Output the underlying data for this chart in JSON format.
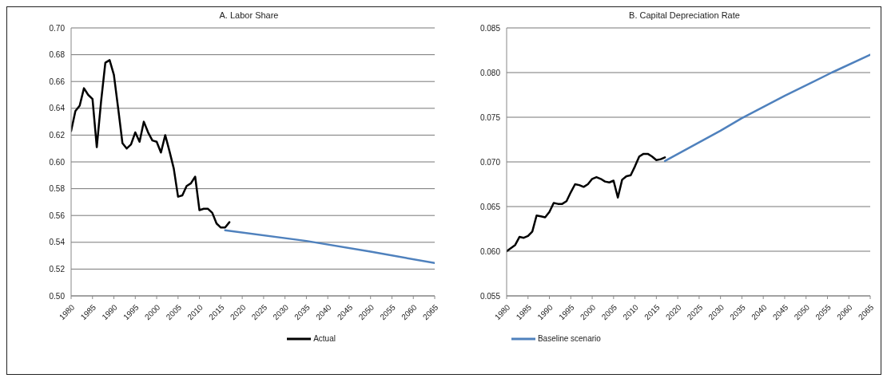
{
  "chart_data": [
    {
      "type": "line",
      "title": "A. Labor Share",
      "xlim": [
        1980,
        2065
      ],
      "xticks": [
        1980,
        1985,
        1990,
        1995,
        2000,
        2005,
        2010,
        2015,
        2020,
        2025,
        2030,
        2035,
        2040,
        2045,
        2050,
        2055,
        2060,
        2065
      ],
      "ylim": [
        0.5,
        0.7
      ],
      "yticks": [
        {
          "value": 0.5,
          "label": "0.50"
        },
        {
          "value": 0.52,
          "label": "0.52"
        },
        {
          "value": 0.54,
          "label": "0.54"
        },
        {
          "value": 0.56,
          "label": "0.56"
        },
        {
          "value": 0.58,
          "label": "0.58"
        },
        {
          "value": 0.6,
          "label": "0.60"
        },
        {
          "value": 0.62,
          "label": "0.62"
        },
        {
          "value": 0.64,
          "label": "0.64"
        },
        {
          "value": 0.66,
          "label": "0.66"
        },
        {
          "value": 0.68,
          "label": "0.68"
        },
        {
          "value": 0.7,
          "label": "0.70"
        }
      ],
      "grid": "y",
      "legend": "bottom",
      "series": [
        {
          "name": "Actual",
          "color": "#000000",
          "x": [
            1980,
            1981,
            1982,
            1983,
            1984,
            1985,
            1986,
            1987,
            1988,
            1989,
            1990,
            1991,
            1992,
            1993,
            1994,
            1995,
            1996,
            1997,
            1998,
            1999,
            2000,
            2001,
            2002,
            2003,
            2004,
            2005,
            2006,
            2007,
            2008,
            2009,
            2010,
            2011,
            2012,
            2013,
            2014,
            2015,
            2016,
            2017
          ],
          "values": [
            0.623,
            0.638,
            0.642,
            0.655,
            0.65,
            0.647,
            0.611,
            0.645,
            0.674,
            0.676,
            0.665,
            0.64,
            0.614,
            0.61,
            0.613,
            0.622,
            0.615,
            0.63,
            0.622,
            0.616,
            0.615,
            0.607,
            0.62,
            0.608,
            0.595,
            0.574,
            0.575,
            0.582,
            0.584,
            0.589,
            0.564,
            0.565,
            0.565,
            0.562,
            0.554,
            0.551,
            0.551,
            0.555
          ]
        },
        {
          "name": "Baseline scenario",
          "color": "#4f81bd",
          "x": [
            2016,
            2035,
            2050,
            2065
          ],
          "values": [
            0.549,
            0.541,
            0.533,
            0.5245
          ]
        }
      ]
    },
    {
      "type": "line",
      "title": "B. Capital Depreciation Rate",
      "xlim": [
        1980,
        2065
      ],
      "xticks": [
        1980,
        1985,
        1990,
        1995,
        2000,
        2005,
        2010,
        2015,
        2020,
        2025,
        2030,
        2035,
        2040,
        2045,
        2050,
        2055,
        2060,
        2065
      ],
      "ylim": [
        0.055,
        0.085
      ],
      "yticks": [
        {
          "value": 0.055,
          "label": "0.055"
        },
        {
          "value": 0.06,
          "label": "0.060"
        },
        {
          "value": 0.065,
          "label": "0.065"
        },
        {
          "value": 0.07,
          "label": "0.070"
        },
        {
          "value": 0.075,
          "label": "0.075"
        },
        {
          "value": 0.08,
          "label": "0.080"
        },
        {
          "value": 0.085,
          "label": "0.085"
        }
      ],
      "grid": "y",
      "series": [
        {
          "color": "#000000",
          "x": [
            1980,
            1982,
            1983,
            1984,
            1985,
            1986,
            1987,
            1988,
            1989,
            1990,
            1991,
            1992,
            1993,
            1994,
            1995,
            1996,
            1997,
            1998,
            1999,
            2000,
            2001,
            2002,
            2003,
            2004,
            2005,
            2006,
            2007,
            2008,
            2009,
            2010,
            2011,
            2012,
            2013,
            2014,
            2015,
            2016,
            2017
          ],
          "values": [
            0.06,
            0.0607,
            0.0616,
            0.0615,
            0.0617,
            0.0622,
            0.064,
            0.0639,
            0.0638,
            0.0644,
            0.0654,
            0.0653,
            0.0653,
            0.0656,
            0.0666,
            0.0675,
            0.0674,
            0.0672,
            0.0675,
            0.0681,
            0.0683,
            0.0681,
            0.0678,
            0.0677,
            0.0679,
            0.066,
            0.068,
            0.0684,
            0.0685,
            0.0695,
            0.0706,
            0.0709,
            0.0709,
            0.0706,
            0.0702,
            0.0703,
            0.0705
          ]
        },
        {
          "color": "#4f81bd",
          "x": [
            2017,
            2030,
            2035,
            2045,
            2056,
            2065
          ],
          "values": [
            0.0701,
            0.0735,
            0.0749,
            0.0774,
            0.08,
            0.082
          ]
        }
      ]
    }
  ]
}
